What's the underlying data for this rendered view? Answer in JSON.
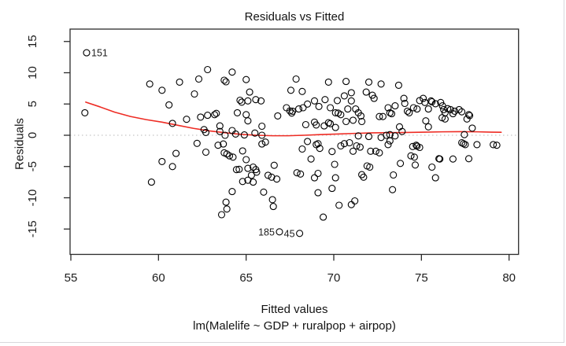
{
  "window": {
    "background": "#ffffff",
    "border_color": "#d8d8dc"
  },
  "chart_data": {
    "type": "scatter",
    "title": "Residuals vs Fitted",
    "xlabel": "Fitted values",
    "xlabel_sub": "lm(Malelife ~ GDP + ruralpop + airpop)",
    "ylabel": "Residuals",
    "x_ticks": [
      55,
      60,
      65,
      70,
      75,
      80
    ],
    "y_ticks": [
      15,
      10,
      5,
      0,
      -5,
      -10,
      -15
    ],
    "xlim": [
      54.9,
      80.6
    ],
    "ylim": [
      -19.1,
      17.0
    ],
    "grid": false,
    "legend": null,
    "axis_color": "#2b2b2b",
    "tick_label_color": "#1c1c1c",
    "zero_line": {
      "y": 0,
      "style": "dotted",
      "color": "#c6c6c6"
    },
    "point_style": {
      "shape": "open-circle",
      "stroke": "#000000",
      "radius": 4
    },
    "smooth_line": {
      "color": "#ee2c24",
      "points": [
        [
          55.85,
          5.3
        ],
        [
          56.6,
          4.6
        ],
        [
          57.5,
          3.7
        ],
        [
          58.4,
          3.0
        ],
        [
          59.3,
          2.5
        ],
        [
          60.2,
          2.1
        ],
        [
          61.1,
          1.6
        ],
        [
          62.0,
          1.1
        ],
        [
          62.9,
          0.7
        ],
        [
          63.8,
          0.4
        ],
        [
          64.7,
          0.15
        ],
        [
          65.6,
          0.0
        ],
        [
          66.5,
          -0.08
        ],
        [
          67.4,
          -0.08
        ],
        [
          68.3,
          0.0
        ],
        [
          69.2,
          0.1
        ],
        [
          70.2,
          0.2
        ],
        [
          71.2,
          0.3
        ],
        [
          72.2,
          0.38
        ],
        [
          73.2,
          0.42
        ],
        [
          74.2,
          0.45
        ],
        [
          75.2,
          0.5
        ],
        [
          76.2,
          0.55
        ],
        [
          77.2,
          0.57
        ],
        [
          78.2,
          0.55
        ],
        [
          79.0,
          0.5
        ],
        [
          79.55,
          0.48
        ]
      ]
    },
    "labeled_points": [
      {
        "label": "151",
        "x": 55.9,
        "y": 13.2,
        "side": "right"
      },
      {
        "label": "185",
        "x": 66.9,
        "y": -15.45,
        "side": "left"
      },
      {
        "label": "45",
        "x": 68.05,
        "y": -15.7,
        "side": "left"
      }
    ],
    "points": [
      [
        55.9,
        13.2
      ],
      [
        55.8,
        3.6
      ],
      [
        59.5,
        8.2
      ],
      [
        60.2,
        7.2
      ],
      [
        61.2,
        8.5
      ],
      [
        60.6,
        4.85
      ],
      [
        60.8,
        1.9
      ],
      [
        61.6,
        2.55
      ],
      [
        62.8,
        10.5
      ],
      [
        62.3,
        9.0
      ],
      [
        64.2,
        10.1
      ],
      [
        63.75,
        8.8
      ],
      [
        63.85,
        8.55
      ],
      [
        65.0,
        8.9
      ],
      [
        62.05,
        6.6
      ],
      [
        65.2,
        6.9
      ],
      [
        64.65,
        5.6
      ],
      [
        64.75,
        5.3
      ],
      [
        65.1,
        5.5
      ],
      [
        65.55,
        5.7
      ],
      [
        65.85,
        5.5
      ],
      [
        64.5,
        3.6
      ],
      [
        63.2,
        3.3
      ],
      [
        62.8,
        3.2
      ],
      [
        62.4,
        2.9
      ],
      [
        63.3,
        3.5
      ],
      [
        65.0,
        3.3
      ],
      [
        65.1,
        2.3
      ],
      [
        63.5,
        1.5
      ],
      [
        63.5,
        0.6
      ],
      [
        62.6,
        0.9
      ],
      [
        62.7,
        0.45
      ],
      [
        63.8,
        0.0
      ],
      [
        64.2,
        0.75
      ],
      [
        64.4,
        0.2
      ],
      [
        64.9,
        0.05
      ],
      [
        65.9,
        1.45
      ],
      [
        65.5,
        0.35
      ],
      [
        65.9,
        0.0
      ],
      [
        66.8,
        3.1
      ],
      [
        67.3,
        4.4
      ],
      [
        67.5,
        3.9
      ],
      [
        67.65,
        3.85
      ],
      [
        67.6,
        3.55
      ],
      [
        68.0,
        4.2
      ],
      [
        68.25,
        4.4
      ],
      [
        68.5,
        5.0
      ],
      [
        68.9,
        5.5
      ],
      [
        69.15,
        4.6
      ],
      [
        67.85,
        9.0
      ],
      [
        67.55,
        7.2
      ],
      [
        68.2,
        7.0
      ],
      [
        68.4,
        1.7
      ],
      [
        68.9,
        2.1
      ],
      [
        69.0,
        1.65
      ],
      [
        69.7,
        8.5
      ],
      [
        70.7,
        8.6
      ],
      [
        72.0,
        8.5
      ],
      [
        72.7,
        8.2
      ],
      [
        73.7,
        8.0
      ],
      [
        71.0,
        6.8
      ],
      [
        71.85,
        6.9
      ],
      [
        70.6,
        6.3
      ],
      [
        72.2,
        6.4
      ],
      [
        72.3,
        5.9
      ],
      [
        71.0,
        5.5
      ],
      [
        70.2,
        5.55
      ],
      [
        69.5,
        5.7
      ],
      [
        69.8,
        4.4
      ],
      [
        70.1,
        3.6
      ],
      [
        70.25,
        3.55
      ],
      [
        70.4,
        3.3
      ],
      [
        70.8,
        4.2
      ],
      [
        71.25,
        4.2
      ],
      [
        71.4,
        3.6
      ],
      [
        71.55,
        3.1
      ],
      [
        69.7,
        2.0
      ],
      [
        69.8,
        1.85
      ],
      [
        69.45,
        1.5
      ],
      [
        70.1,
        1.25
      ],
      [
        70.7,
        2.2
      ],
      [
        71.1,
        2.4
      ],
      [
        71.6,
        2.2
      ],
      [
        72.6,
        3.0
      ],
      [
        72.8,
        3.0
      ],
      [
        73.2,
        3.6
      ],
      [
        73.3,
        3.45
      ],
      [
        73.1,
        4.4
      ],
      [
        73.5,
        4.7
      ],
      [
        74.0,
        5.9
      ],
      [
        74.05,
        5.1
      ],
      [
        74.2,
        3.85
      ],
      [
        74.3,
        3.6
      ],
      [
        74.55,
        4.4
      ],
      [
        74.75,
        4.2
      ],
      [
        74.9,
        5.55
      ],
      [
        75.1,
        5.9
      ],
      [
        75.2,
        5.25
      ],
      [
        75.4,
        4.2
      ],
      [
        75.55,
        5.5
      ],
      [
        75.6,
        5.35
      ],
      [
        75.8,
        5.05
      ],
      [
        76.1,
        5.25
      ],
      [
        76.2,
        4.7
      ],
      [
        75.25,
        2.3
      ],
      [
        75.4,
        1.35
      ],
      [
        73.75,
        1.35
      ],
      [
        73.9,
        0.6
      ],
      [
        73.0,
        0.0
      ],
      [
        73.2,
        0.1
      ],
      [
        73.5,
        -0.1
      ],
      [
        71.4,
        -0.1
      ],
      [
        72.0,
        -0.2
      ],
      [
        72.7,
        -0.35
      ],
      [
        76.27,
        4.1
      ],
      [
        76.5,
        4.25
      ],
      [
        76.66,
        4.1
      ],
      [
        76.35,
        3.6
      ],
      [
        76.8,
        3.45
      ],
      [
        76.18,
        2.8
      ],
      [
        76.35,
        2.6
      ],
      [
        76.9,
        3.85
      ],
      [
        77.15,
        4.1
      ],
      [
        77.3,
        3.75
      ],
      [
        77.7,
        3.3
      ],
      [
        77.75,
        3.15
      ],
      [
        77.6,
        2.6
      ],
      [
        77.9,
        1.15
      ],
      [
        77.45,
        0.1
      ],
      [
        61.0,
        -2.9
      ],
      [
        60.2,
        -4.2
      ],
      [
        60.8,
        -5.0
      ],
      [
        59.6,
        -7.5
      ],
      [
        62.2,
        -1.3
      ],
      [
        62.7,
        -2.7
      ],
      [
        63.4,
        -1.6
      ],
      [
        63.7,
        -1.4
      ],
      [
        63.75,
        -2.8
      ],
      [
        63.9,
        -3.0
      ],
      [
        64.05,
        -3.3
      ],
      [
        64.25,
        -3.5
      ],
      [
        64.8,
        -2.5
      ],
      [
        65.0,
        -3.9
      ],
      [
        64.45,
        -5.5
      ],
      [
        64.6,
        -5.45
      ],
      [
        65.1,
        -5.3
      ],
      [
        65.4,
        -5.1
      ],
      [
        65.55,
        -5.5
      ],
      [
        65.6,
        -5.9
      ],
      [
        65.3,
        -6.4
      ],
      [
        65.1,
        -7.2
      ],
      [
        65.4,
        -7.5
      ],
      [
        64.8,
        -7.4
      ],
      [
        65.9,
        -1.4
      ],
      [
        66.1,
        -1.1
      ],
      [
        66.6,
        -4.8
      ],
      [
        66.25,
        -6.4
      ],
      [
        66.45,
        -6.7
      ],
      [
        66.75,
        -7.0
      ],
      [
        66.0,
        -9.1
      ],
      [
        66.5,
        -10.3
      ],
      [
        66.55,
        -11.4
      ],
      [
        64.2,
        -9.0
      ],
      [
        63.85,
        -10.7
      ],
      [
        63.9,
        -11.8
      ],
      [
        63.6,
        -12.7
      ],
      [
        68.2,
        -2.2
      ],
      [
        68.5,
        -1.0
      ],
      [
        69.0,
        -1.5
      ],
      [
        69.1,
        -1.35
      ],
      [
        68.7,
        -3.8
      ],
      [
        67.9,
        -6.0
      ],
      [
        68.1,
        -6.2
      ],
      [
        68.9,
        -6.8
      ],
      [
        69.1,
        -9.2
      ],
      [
        69.1,
        -6.1
      ],
      [
        66.9,
        -15.45
      ],
      [
        68.05,
        -15.7
      ],
      [
        69.2,
        -2.1
      ],
      [
        69.9,
        -2.6
      ],
      [
        70.4,
        -1.7
      ],
      [
        70.6,
        -1.35
      ],
      [
        70.9,
        -1.2
      ],
      [
        71.3,
        -1.7
      ],
      [
        71.5,
        -1.9
      ],
      [
        71.1,
        -2.55
      ],
      [
        71.9,
        -4.9
      ],
      [
        72.05,
        -5.1
      ],
      [
        72.1,
        -2.55
      ],
      [
        72.4,
        -2.55
      ],
      [
        72.6,
        -2.8
      ],
      [
        73.1,
        -1.5
      ],
      [
        73.2,
        -0.9
      ],
      [
        70.05,
        -4.65
      ],
      [
        70.1,
        -6.8
      ],
      [
        69.9,
        -8.5
      ],
      [
        69.4,
        -13.1
      ],
      [
        70.3,
        -11.2
      ],
      [
        71.0,
        -11.1
      ],
      [
        71.2,
        -10.5
      ],
      [
        71.6,
        -6.3
      ],
      [
        71.7,
        -6.7
      ],
      [
        73.4,
        -6.35
      ],
      [
        73.35,
        -8.7
      ],
      [
        73.8,
        -4.5
      ],
      [
        74.5,
        -1.8
      ],
      [
        74.7,
        -1.6
      ],
      [
        74.75,
        -1.75
      ],
      [
        74.9,
        -1.95
      ],
      [
        74.4,
        -3.3
      ],
      [
        74.6,
        -3.5
      ],
      [
        74.65,
        -4.75
      ],
      [
        75.6,
        -5.1
      ],
      [
        75.8,
        -6.8
      ],
      [
        76.0,
        -3.75
      ],
      [
        77.3,
        -1.2
      ],
      [
        77.4,
        -1.35
      ],
      [
        77.5,
        -1.5
      ],
      [
        78.17,
        -1.5
      ],
      [
        79.1,
        -1.5
      ],
      [
        79.3,
        -1.6
      ],
      [
        76.05,
        -3.8
      ],
      [
        76.8,
        -3.8
      ],
      [
        77.7,
        -3.75
      ]
    ]
  }
}
